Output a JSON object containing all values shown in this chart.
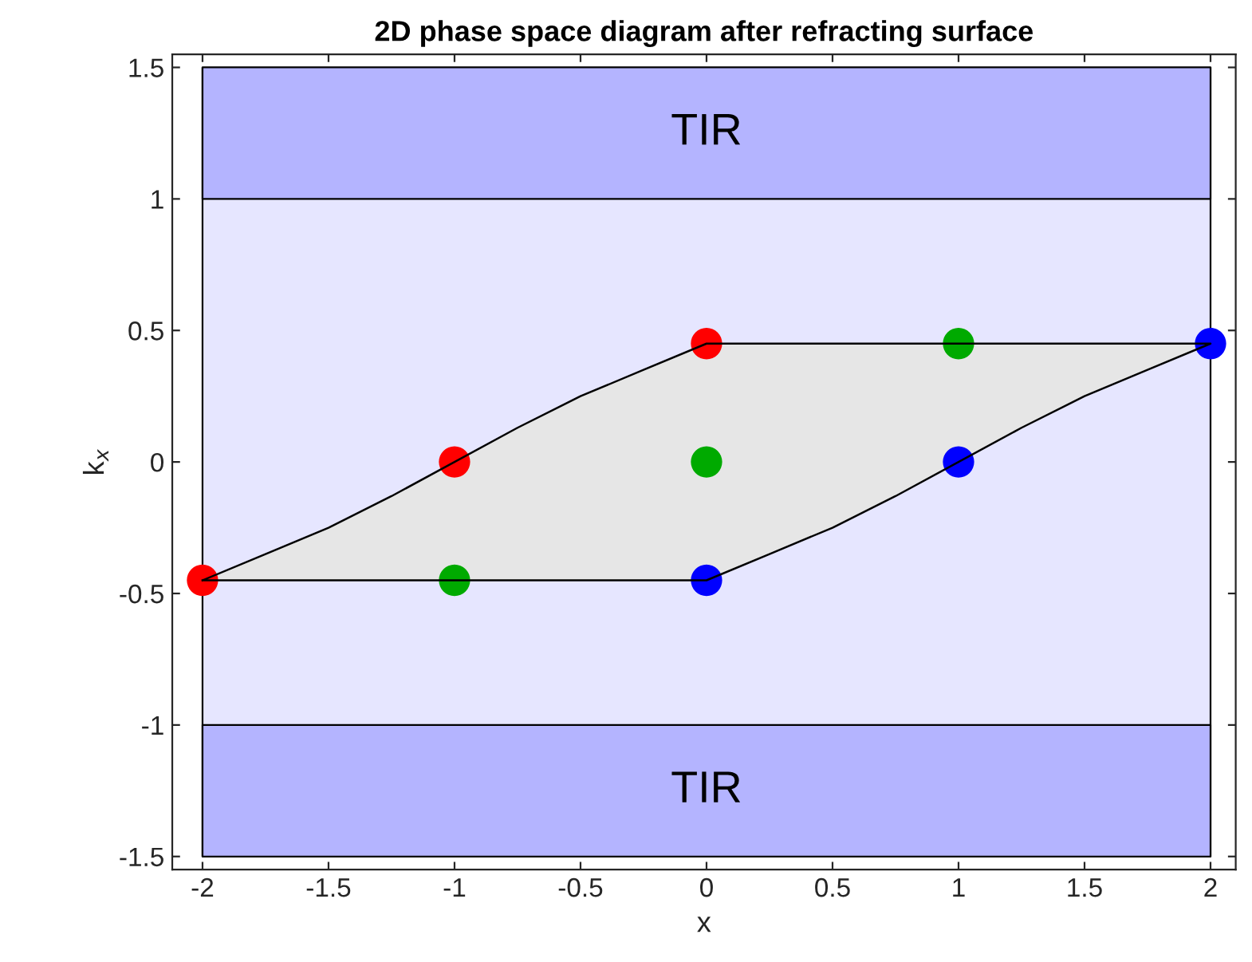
{
  "chart_data": {
    "type": "scatter",
    "title": "2D phase space diagram after refracting surface",
    "xlabel": "x",
    "ylabel": "k$_{x}$",
    "xlim": [
      -2.12,
      2.1
    ],
    "ylim": [
      -1.55,
      1.55
    ],
    "xticks": [
      -2,
      -1.5,
      -1,
      -0.5,
      0,
      0.5,
      1,
      1.5,
      2
    ],
    "yticks": [
      -1.5,
      -1,
      -0.5,
      0,
      0.5,
      1,
      1.5
    ],
    "grid": false,
    "marker": "circle",
    "bands": [
      {
        "axis": "y",
        "from": -1.5,
        "to": 1.5,
        "color": "#e6e6ff"
      },
      {
        "axis": "y",
        "from": 1,
        "to": 1.5,
        "label": "TIR",
        "color": "#b4b4ff"
      },
      {
        "axis": "y",
        "from": -1.5,
        "to": -1,
        "label": "TIR",
        "color": "#b4b4ff"
      }
    ],
    "series": [
      {
        "type": "area",
        "marker": "none",
        "color": "#e6e6e6",
        "x": [
          -2,
          -1.75,
          -1.5,
          -1.25,
          -1,
          -0.75,
          -0.5,
          -0.25,
          0,
          2,
          1.75,
          1.5,
          1.25,
          1,
          0.75,
          0.5,
          0.25,
          0,
          -2
        ],
        "values": [
          -0.45,
          -0.35,
          -0.25,
          -0.13,
          0,
          0.13,
          0.25,
          0.35,
          0.45,
          0.45,
          0.35,
          0.25,
          0.13,
          0,
          -0.13,
          -0.25,
          -0.35,
          -0.45,
          -0.45
        ]
      },
      {
        "color": "#ff0000",
        "x": [
          -2,
          -1,
          0
        ],
        "values": [
          -0.45,
          0,
          0.45
        ]
      },
      {
        "color": "#00aa00",
        "x": [
          -1,
          0,
          1
        ],
        "values": [
          -0.45,
          0,
          0.45
        ]
      },
      {
        "color": "#0000ff",
        "x": [
          0,
          1,
          2
        ],
        "values": [
          -0.45,
          0,
          0.45
        ]
      }
    ]
  }
}
